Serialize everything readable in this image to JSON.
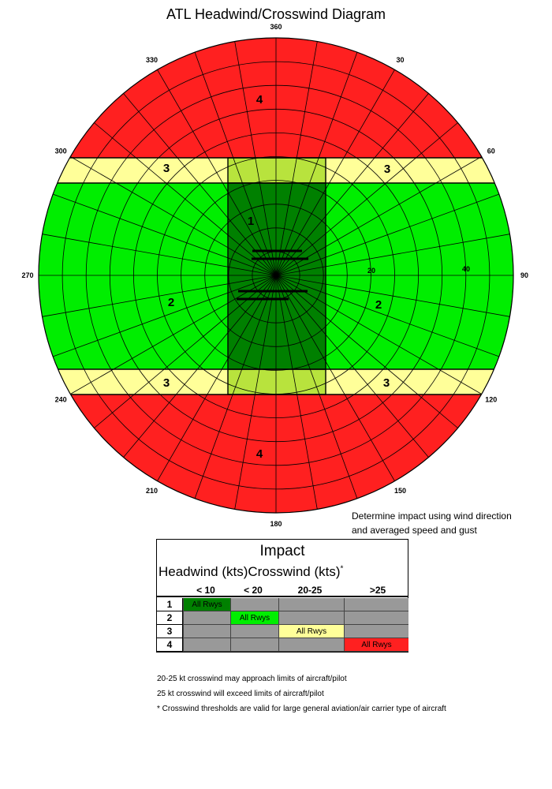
{
  "title": "ATL Headwind/Crosswind Diagram",
  "compass": {
    "labels": [
      "360",
      "30",
      "60",
      "90",
      "120",
      "150",
      "180",
      "210",
      "240",
      "270",
      "300",
      "330"
    ],
    "speed_labels": [
      "20",
      "40"
    ]
  },
  "zones": {
    "colors": {
      "zone1": "#008000",
      "zone1_light": "#b8e33d",
      "zone2": "#00ee00",
      "zone3": "#ffff99",
      "zone4": "#ff2020"
    },
    "labels": {
      "zone4_top": "4",
      "zone3_top_left": "3",
      "zone3_top_right": "3",
      "zone1": "1",
      "zone2_left": "2",
      "zone2_right": "2",
      "zone3_bottom_left": "3",
      "zone3_bottom_right": "3",
      "zone4_bottom": "4"
    }
  },
  "instructions": [
    "Determine impact using wind direction",
    "and averaged speed and gust"
  ],
  "impact_table": {
    "title": "Impact",
    "header_headwind": "Headwind (kts)",
    "header_crosswind": "Crosswind (kts)",
    "header_asterisk": "*",
    "columns": [
      "< 10",
      "< 20",
      "20-25",
      ">25"
    ],
    "rows": [
      {
        "label": "1",
        "cells": [
          "All Rwys",
          "",
          "",
          ""
        ]
      },
      {
        "label": "2",
        "cells": [
          "",
          "All Rwys",
          "",
          ""
        ]
      },
      {
        "label": "3",
        "cells": [
          "",
          "",
          "All Rwys",
          ""
        ]
      },
      {
        "label": "4",
        "cells": [
          "",
          "",
          "",
          "All Rwys"
        ]
      }
    ],
    "active_colors": [
      "#008000",
      "#00ee00",
      "#ffff99",
      "#ff2020"
    ],
    "inactive_color": "#999999"
  },
  "notes": [
    "20-25 kt crosswind may approach limits of aircraft/pilot",
    "25 kt crosswind will exceed limits of aircraft/pilot",
    "* Crosswind thresholds are valid for large general aviation/air carrier type of aircraft"
  ]
}
